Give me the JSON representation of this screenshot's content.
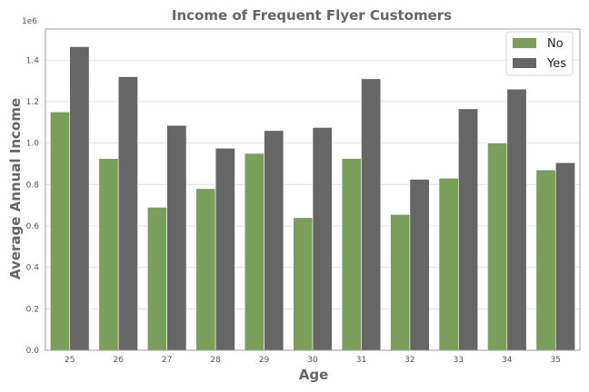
{
  "chart_data": {
    "type": "bar",
    "title": "Income of Frequent Flyer Customers",
    "xlabel": "Age",
    "ylabel": "Average Annual Income",
    "y_scale_label": "1e6",
    "ylim": [
      0,
      1.55
    ],
    "yticks": [
      "0.0",
      "0.2",
      "0.4",
      "0.6",
      "0.8",
      "1.0",
      "1.2",
      "1.4"
    ],
    "categories": [
      "25",
      "26",
      "27",
      "28",
      "29",
      "30",
      "31",
      "32",
      "33",
      "34",
      "35"
    ],
    "series": [
      {
        "name": "No",
        "color": "#7a9f5b",
        "values": [
          1.15,
          0.925,
          0.69,
          0.78,
          0.95,
          0.64,
          0.925,
          0.655,
          0.83,
          1.0,
          0.87
        ]
      },
      {
        "name": "Yes",
        "color": "#666666",
        "values": [
          1.465,
          1.32,
          1.085,
          0.975,
          1.06,
          1.075,
          1.31,
          0.825,
          1.165,
          1.26,
          0.905
        ]
      }
    ],
    "grid": true,
    "legend_position": "top-right"
  }
}
